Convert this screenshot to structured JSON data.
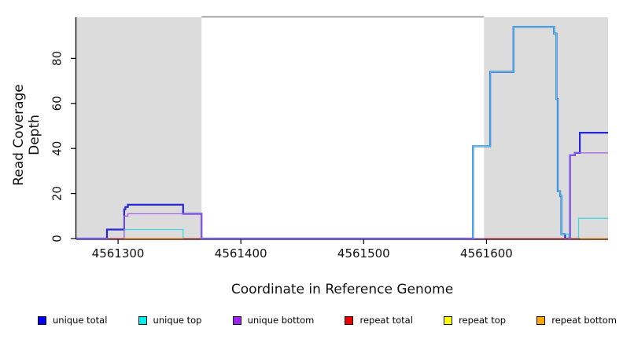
{
  "figure": {
    "background": "#ffffff",
    "shade_color": "#dcdcdc",
    "axis_color": "#000000",
    "box_top_color": "#8a8a8a"
  },
  "chart_data": {
    "type": "line",
    "title": "",
    "xlabel": "Coordinate in Reference Genome",
    "ylabel": "Read Coverage Depth",
    "xlim": [
      4561266,
      4561699
    ],
    "ylim": [
      0,
      98
    ],
    "x_ticks": [
      4561300,
      4561400,
      4561500,
      4561600
    ],
    "y_ticks": [
      0,
      20,
      40,
      60,
      80
    ],
    "grid": false,
    "legend_position": "bottom",
    "shaded_regions": [
      {
        "x0": 4561266,
        "x1": 4561368
      },
      {
        "x0": 4561598,
        "x1": 4561699
      }
    ],
    "series": [
      {
        "name": "unique total",
        "color": "#2626d9",
        "width": 2.2,
        "segments": [
          [
            [
              4561266,
              0
            ],
            [
              4561291,
              0
            ],
            [
              4561291,
              4
            ],
            [
              4561305,
              4
            ],
            [
              4561305,
              13
            ],
            [
              4561306,
              13
            ],
            [
              4561306,
              14
            ],
            [
              4561308,
              14
            ],
            [
              4561308,
              15
            ],
            [
              4561353,
              15
            ],
            [
              4561353,
              11
            ],
            [
              4561368,
              11
            ],
            [
              4561368,
              0
            ],
            [
              4561589,
              0
            ],
            [
              4561589,
              41
            ],
            [
              4561603,
              41
            ],
            [
              4561603,
              74
            ],
            [
              4561622,
              74
            ],
            [
              4561622,
              94
            ],
            [
              4561655,
              94
            ],
            [
              4561655,
              91
            ],
            [
              4561657,
              91
            ],
            [
              4561657,
              62
            ],
            [
              4561658,
              62
            ],
            [
              4561658,
              21
            ],
            [
              4561660,
              21
            ],
            [
              4561660,
              19
            ],
            [
              4561661,
              19
            ],
            [
              4561661,
              2
            ],
            [
              4561664,
              2
            ],
            [
              4561664,
              0
            ],
            [
              4561668,
              0
            ],
            [
              4561668,
              37
            ],
            [
              4561672,
              37
            ],
            [
              4561672,
              38
            ],
            [
              4561676,
              38
            ],
            [
              4561676,
              47
            ],
            [
              4561699,
              47
            ]
          ]
        ]
      },
      {
        "name": "unique top",
        "color": "#3fd9e0",
        "width": 1.3,
        "segments": [
          [
            [
              4561266,
              0
            ],
            [
              4561305,
              0
            ],
            [
              4561305,
              4
            ],
            [
              4561353,
              4
            ],
            [
              4561353,
              0
            ],
            [
              4561589,
              0
            ],
            [
              4561589,
              41
            ],
            [
              4561603,
              41
            ],
            [
              4561603,
              74
            ],
            [
              4561622,
              74
            ],
            [
              4561622,
              94
            ],
            [
              4561655,
              94
            ],
            [
              4561655,
              91
            ],
            [
              4561657,
              91
            ],
            [
              4561657,
              62
            ],
            [
              4561658,
              62
            ],
            [
              4561658,
              21
            ],
            [
              4561660,
              21
            ],
            [
              4561660,
              19
            ],
            [
              4561661,
              19
            ],
            [
              4561661,
              2
            ],
            [
              4561667,
              2
            ],
            [
              4561667,
              0
            ],
            [
              4561675,
              0
            ],
            [
              4561675,
              9
            ],
            [
              4561699,
              9
            ]
          ]
        ]
      },
      {
        "name": "unique bottom",
        "color": "#a95fe6",
        "width": 1.3,
        "segments": [
          [
            [
              4561266,
              0
            ],
            [
              4561305,
              0
            ],
            [
              4561305,
              10
            ],
            [
              4561308,
              10
            ],
            [
              4561308,
              11
            ],
            [
              4561368,
              11
            ],
            [
              4561368,
              0
            ],
            [
              4561668,
              0
            ],
            [
              4561668,
              37
            ],
            [
              4561672,
              37
            ],
            [
              4561672,
              38
            ],
            [
              4561699,
              38
            ]
          ]
        ]
      },
      {
        "name": "repeat total",
        "color": "#e04040",
        "width": 1.2,
        "segments": [
          [
            [
              4561291,
              0
            ],
            [
              4561368,
              0
            ]
          ],
          [
            [
              4561598,
              0
            ],
            [
              4561676,
              0
            ]
          ]
        ]
      },
      {
        "name": "repeat top",
        "color": "#ededed00",
        "width": 1.2,
        "segments": [
          [
            [
              4561353,
              0
            ],
            [
              4561368,
              0
            ]
          ],
          [
            [
              4561661,
              0
            ],
            [
              4561676,
              0
            ]
          ]
        ]
      },
      {
        "name": "repeat bottom",
        "color": "#ff9414",
        "width": 1.3,
        "segments": [
          [
            [
              4561305,
              0
            ],
            [
              4561353,
              0
            ]
          ],
          [
            [
              4561676,
              0
            ],
            [
              4561699,
              0
            ]
          ]
        ]
      }
    ]
  },
  "legend": {
    "items": [
      {
        "label": "unique total",
        "color": "#0000ee"
      },
      {
        "label": "unique top",
        "color": "#00eeee"
      },
      {
        "label": "unique bottom",
        "color": "#a020f0"
      },
      {
        "label": "repeat total",
        "color": "#ee0000"
      },
      {
        "label": "repeat top",
        "color": "#ffff00"
      },
      {
        "label": "repeat bottom",
        "color": "#ffa500"
      }
    ]
  }
}
